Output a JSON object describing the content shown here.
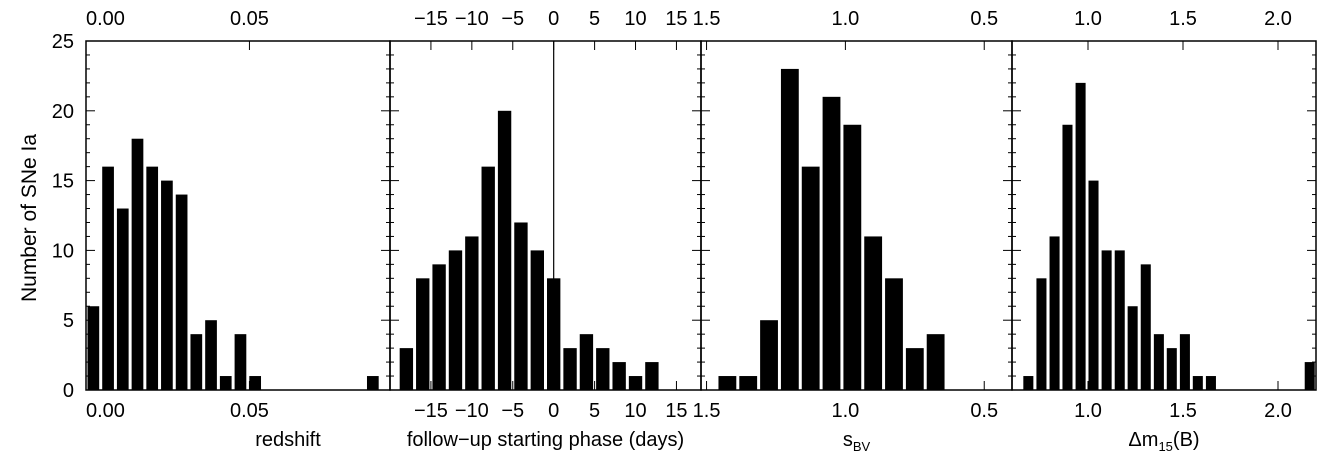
{
  "figure": {
    "ylabel": "Number of SNe Ia",
    "yticks": [
      "0",
      "5",
      "10",
      "15",
      "20",
      "25"
    ],
    "ylim": [
      0,
      25
    ],
    "style": {
      "bar_color": "#000000",
      "axis_color": "#000000",
      "background": "#ffffff"
    }
  },
  "chart_data": [
    {
      "type": "bar",
      "xlabel": "redshift",
      "xlabel_sub": "",
      "xlim": [
        0.0,
        0.093
      ],
      "xtick_values": [
        0.0,
        0.05
      ],
      "xtick_labels": [
        "0.00",
        "0.05"
      ],
      "bar_width": 0.0045,
      "bars": [
        {
          "x": 0.00225,
          "y": 6
        },
        {
          "x": 0.00675,
          "y": 16
        },
        {
          "x": 0.01125,
          "y": 13
        },
        {
          "x": 0.01575,
          "y": 18
        },
        {
          "x": 0.02025,
          "y": 16
        },
        {
          "x": 0.02475,
          "y": 15
        },
        {
          "x": 0.02925,
          "y": 14
        },
        {
          "x": 0.03375,
          "y": 4
        },
        {
          "x": 0.03825,
          "y": 5
        },
        {
          "x": 0.04275,
          "y": 1
        },
        {
          "x": 0.04725,
          "y": 4
        },
        {
          "x": 0.05175,
          "y": 1
        },
        {
          "x": 0.08775,
          "y": 1
        }
      ],
      "reference_line": null
    },
    {
      "type": "bar",
      "xlabel": "follow−up starting phase (days)",
      "xlabel_sub": "",
      "xlim": [
        -20,
        18
      ],
      "xtick_values": [
        -15,
        -10,
        -5,
        0,
        5,
        10,
        15
      ],
      "xtick_labels": [
        "−15",
        "−10",
        "−5",
        "0",
        "5",
        "10",
        "15"
      ],
      "bar_width": 2,
      "bars": [
        {
          "x": -18,
          "y": 3
        },
        {
          "x": -16,
          "y": 8
        },
        {
          "x": -14,
          "y": 9
        },
        {
          "x": -12,
          "y": 10
        },
        {
          "x": -10,
          "y": 11
        },
        {
          "x": -8,
          "y": 16
        },
        {
          "x": -6,
          "y": 20
        },
        {
          "x": -4,
          "y": 12
        },
        {
          "x": -2,
          "y": 10
        },
        {
          "x": 0,
          "y": 8
        },
        {
          "x": 2,
          "y": 3
        },
        {
          "x": 4,
          "y": 4
        },
        {
          "x": 6,
          "y": 3
        },
        {
          "x": 8,
          "y": 2
        },
        {
          "x": 10,
          "y": 1
        },
        {
          "x": 12,
          "y": 2
        }
      ],
      "reference_line": 0
    },
    {
      "type": "bar",
      "xlabel": "s",
      "xlabel_sub": "BV",
      "xlim": [
        1.52,
        0.4
      ],
      "xtick_values": [
        1.5,
        1.0,
        0.5
      ],
      "xtick_labels": [
        "1.5",
        "1.0",
        "0.5"
      ],
      "bar_width": 0.075,
      "bars": [
        {
          "x": 1.425,
          "y": 1
        },
        {
          "x": 1.35,
          "y": 1
        },
        {
          "x": 1.275,
          "y": 5
        },
        {
          "x": 1.2,
          "y": 23
        },
        {
          "x": 1.125,
          "y": 16
        },
        {
          "x": 1.05,
          "y": 21
        },
        {
          "x": 0.975,
          "y": 19
        },
        {
          "x": 0.9,
          "y": 11
        },
        {
          "x": 0.825,
          "y": 8
        },
        {
          "x": 0.75,
          "y": 3
        },
        {
          "x": 0.675,
          "y": 4
        }
      ],
      "reference_line": null
    },
    {
      "type": "bar",
      "xlabel": "Δm",
      "xlabel_sub": "15",
      "xlabel_after": "(B)",
      "xlim": [
        0.6,
        2.2
      ],
      "xtick_values": [
        1.0,
        1.5,
        2.0
      ],
      "xtick_labels": [
        "1.0",
        "1.5",
        "2.0"
      ],
      "bar_width": 0.0686,
      "bars": [
        {
          "x": 0.686,
          "y": 1
        },
        {
          "x": 0.755,
          "y": 8
        },
        {
          "x": 0.824,
          "y": 11
        },
        {
          "x": 0.892,
          "y": 19
        },
        {
          "x": 0.961,
          "y": 22
        },
        {
          "x": 1.029,
          "y": 15
        },
        {
          "x": 1.098,
          "y": 10
        },
        {
          "x": 1.167,
          "y": 10
        },
        {
          "x": 1.235,
          "y": 6
        },
        {
          "x": 1.304,
          "y": 9
        },
        {
          "x": 1.373,
          "y": 4
        },
        {
          "x": 1.441,
          "y": 3
        },
        {
          "x": 1.51,
          "y": 4
        },
        {
          "x": 1.578,
          "y": 1
        },
        {
          "x": 1.647,
          "y": 1
        },
        {
          "x": 2.167,
          "y": 2
        }
      ],
      "reference_line": null
    }
  ]
}
